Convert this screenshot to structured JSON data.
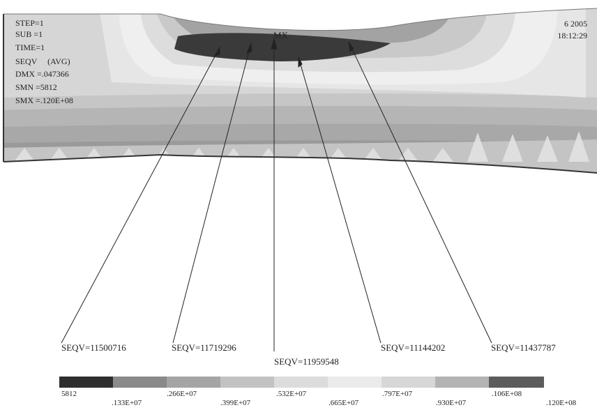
{
  "info_block": {
    "step": "STEP=1",
    "sub": "SUB =1",
    "time": "TIME=1",
    "result": "SEQV     (AVG)",
    "dmx": "DMX =.047366",
    "smn": "SMN =5812",
    "smx": "SMX =.120E+08"
  },
  "date": "6 2005",
  "clock": "18:12:29",
  "max_marker": "MX",
  "annotations": [
    "SEQV=11500716",
    "SEQV=11719296",
    "SEQV=11959548",
    "SEQV=11144202",
    "SEQV=11437787"
  ],
  "legend": {
    "colors": [
      "#2e2e2e",
      "#8a8a8a",
      "#a5a5a5",
      "#c2c2c2",
      "#dcdcdc",
      "#ebebeb",
      "#d7d7d7",
      "#b3b3b3",
      "#5c5c5c"
    ],
    "labels_upper": [
      "5812",
      ".266E+07",
      ".532E+07",
      ".797E+07",
      ".106E+08"
    ],
    "labels_lower": [
      ".133E+07",
      ".399E+07",
      ".665E+07",
      ".930E+07",
      ".120E+08"
    ]
  }
}
